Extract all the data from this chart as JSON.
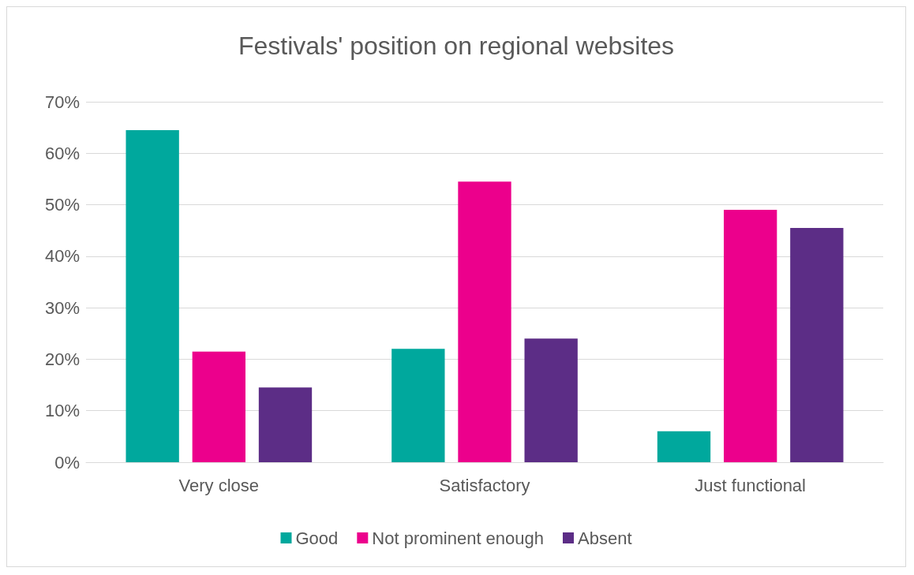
{
  "chart_data": {
    "type": "bar",
    "title": "Festivals' position on regional websites",
    "categories": [
      "Very close",
      "Satisfactory",
      "Just functional"
    ],
    "series": [
      {
        "name": "Good",
        "color": "#00a89d",
        "values": [
          64.5,
          22,
          6
        ]
      },
      {
        "name": "Not prominent enough",
        "color": "#ec008c",
        "values": [
          21.5,
          54.5,
          49
        ]
      },
      {
        "name": "Absent",
        "color": "#5c2d86",
        "values": [
          14.5,
          24,
          45.5
        ]
      }
    ],
    "ylim": [
      0,
      70
    ],
    "yticks": [
      {
        "value": 0,
        "label": "0%"
      },
      {
        "value": 10,
        "label": "10%"
      },
      {
        "value": 20,
        "label": "20%"
      },
      {
        "value": 30,
        "label": "30%"
      },
      {
        "value": 40,
        "label": "40%"
      },
      {
        "value": 50,
        "label": "50%"
      },
      {
        "value": 60,
        "label": "60%"
      },
      {
        "value": 70,
        "label": "70%"
      }
    ],
    "grid": "y",
    "legend": "bottom"
  }
}
